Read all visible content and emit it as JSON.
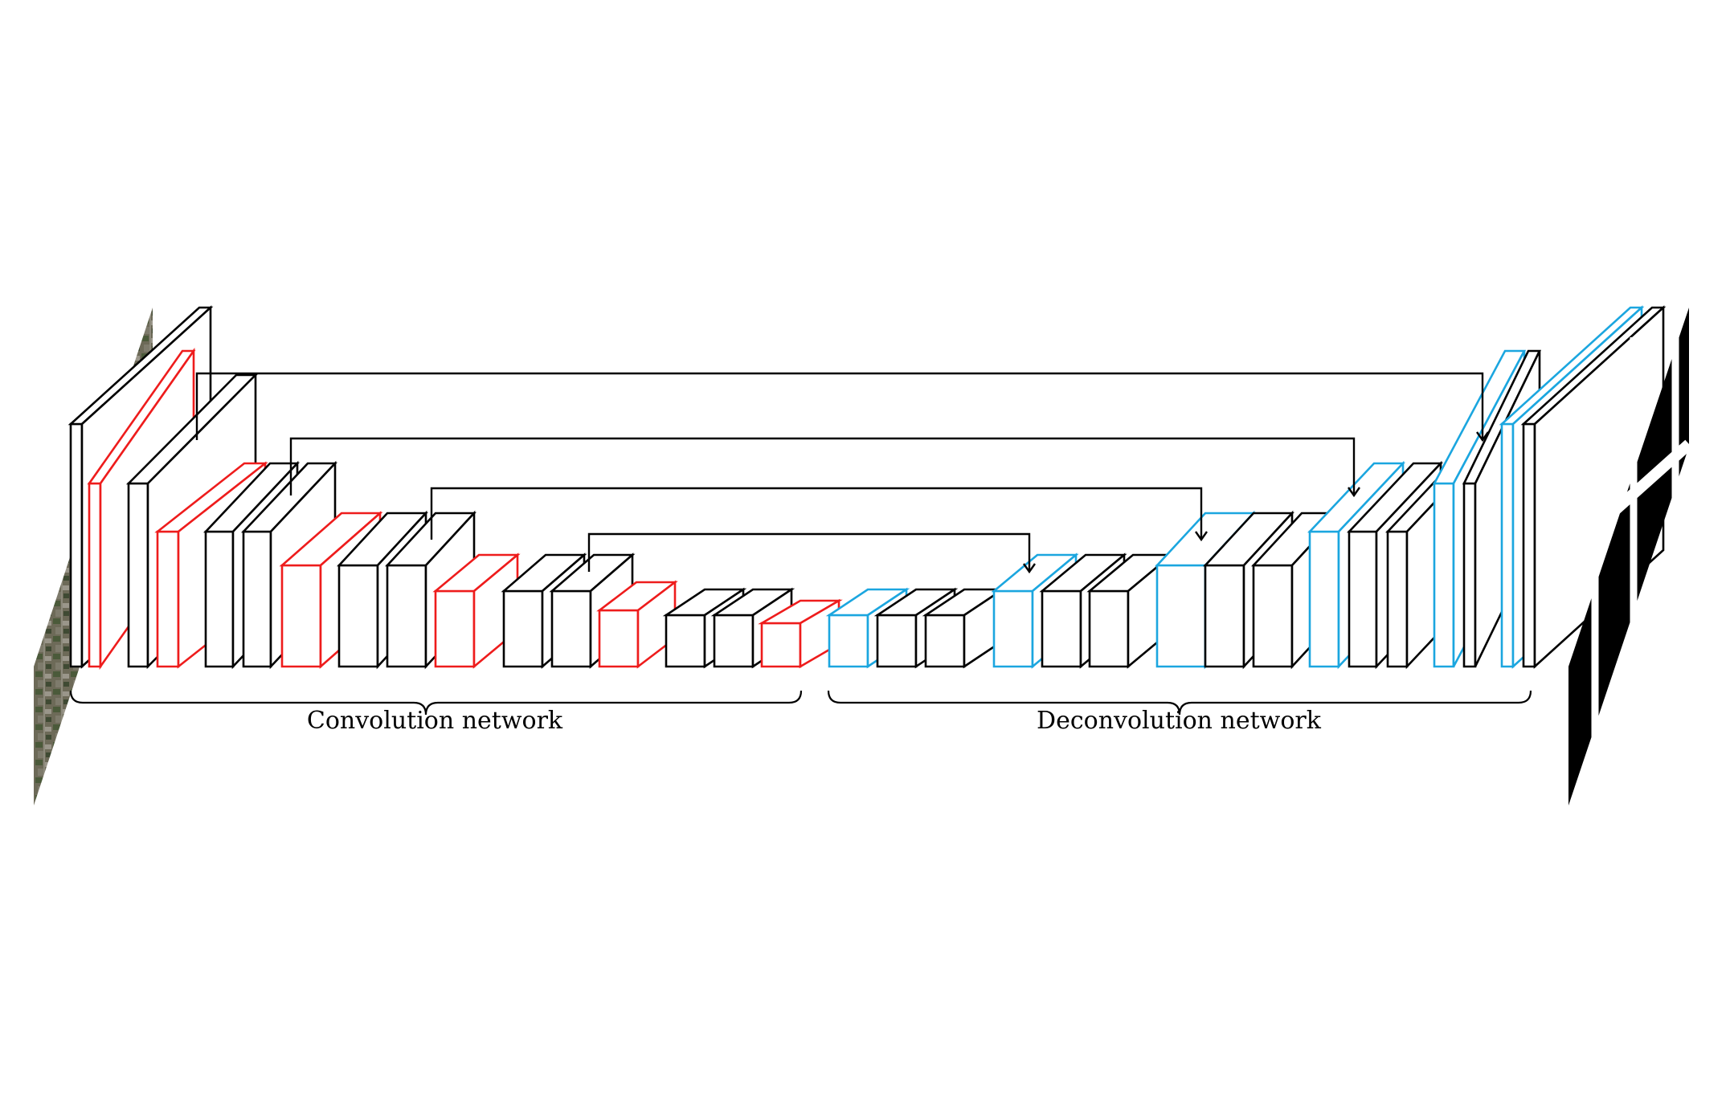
{
  "labels": {
    "encoder": "Convolution network",
    "decoder": "Deconvolution network"
  },
  "colors": {
    "conv": "#000000",
    "pool": "#ee1c1c",
    "unpool": "#1ba6df",
    "background": "#ffffff"
  },
  "layer_types": [
    "input-image",
    "conv",
    "pool",
    "unpool",
    "output-mask"
  ],
  "encoder_sequence": [
    "conv",
    "pool",
    "conv",
    "pool",
    "conv",
    "conv",
    "pool",
    "conv",
    "conv",
    "pool",
    "conv",
    "conv",
    "pool",
    "conv",
    "conv",
    "pool"
  ],
  "decoder_sequence": [
    "unpool",
    "conv",
    "conv",
    "unpool",
    "conv",
    "conv",
    "unpool",
    "conv",
    "conv",
    "unpool",
    "conv",
    "conv",
    "unpool",
    "conv",
    "unpool",
    "conv",
    "conv"
  ],
  "skip_connections": 4
}
